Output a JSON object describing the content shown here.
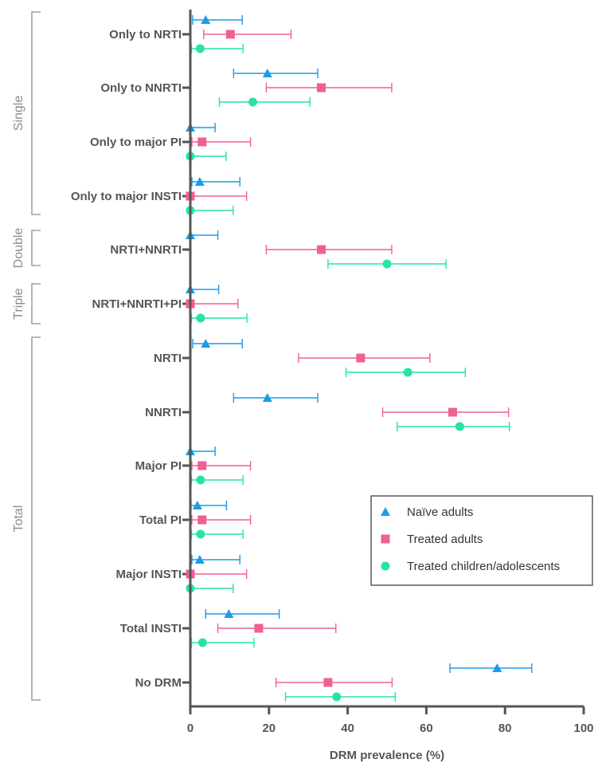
{
  "chart_data": {
    "type": "scatter",
    "subtype": "horizontal-forest-plot-with-error-bars",
    "xlabel": "DRM prevalence (%)",
    "xlim": [
      0,
      100
    ],
    "xticks": [
      0,
      20,
      40,
      60,
      80,
      100
    ],
    "categories": [
      "Only to NRTI",
      "Only to NNRTI",
      "Only to major PI",
      "Only to major INSTI",
      "NRTI+NNRTI",
      "NRTI+NNRTI+PI",
      "NRTI",
      "NNRTI",
      "Major PI",
      "Total PI",
      "Major INSTI",
      "Total INSTI",
      "No DRM"
    ],
    "groups": [
      {
        "label": "Single",
        "categories": [
          "Only to NRTI",
          "Only to NNRTI",
          "Only to major PI",
          "Only to major INSTI"
        ]
      },
      {
        "label": "Double",
        "categories": [
          "NRTI+NNRTI"
        ]
      },
      {
        "label": "Triple",
        "categories": [
          "NRTI+NNRTI+PI"
        ]
      },
      {
        "label": "Total",
        "categories": [
          "NRTI",
          "NNRTI",
          "Major PI",
          "Total PI",
          "Major INSTI",
          "Total INSTI",
          "No DRM"
        ]
      }
    ],
    "legend_position": "lower-right",
    "series": [
      {
        "name": "Naïve adults",
        "marker": "triangle",
        "color": "#1e9be6",
        "values": [
          3.9,
          19.6,
          0.0,
          2.4,
          0.0,
          0.0,
          3.9,
          19.6,
          0.0,
          1.8,
          2.4,
          9.8,
          78.0
        ],
        "ci_low": [
          0.6,
          11.0,
          0.0,
          0.4,
          0.0,
          0.0,
          0.6,
          11.0,
          0.0,
          0.2,
          0.4,
          3.9,
          66.0
        ],
        "ci_high": [
          13.2,
          32.4,
          6.3,
          12.6,
          7.0,
          7.2,
          13.2,
          32.4,
          6.3,
          9.2,
          12.6,
          22.6,
          86.8
        ]
      },
      {
        "name": "Treated adults",
        "marker": "square",
        "color": "#ef5f94",
        "values": [
          10.2,
          33.3,
          3.0,
          0.0,
          33.3,
          0.0,
          43.3,
          66.7,
          3.0,
          3.0,
          0.0,
          17.4,
          35.0
        ],
        "ci_low": [
          3.4,
          19.3,
          0.4,
          0.0,
          19.3,
          0.0,
          27.5,
          48.9,
          0.4,
          0.4,
          0.0,
          7.0,
          21.8
        ],
        "ci_high": [
          25.6,
          51.2,
          15.3,
          14.3,
          51.2,
          12.1,
          60.9,
          80.9,
          15.3,
          15.3,
          14.3,
          37.0,
          51.3
        ]
      },
      {
        "name": "Treated children/adolescents",
        "marker": "circle",
        "color": "#27e3a8",
        "values": [
          2.5,
          15.9,
          0.0,
          0.0,
          50.0,
          2.6,
          55.3,
          68.5,
          2.6,
          2.6,
          0.0,
          3.1,
          37.2
        ],
        "ci_low": [
          0.3,
          7.4,
          0.0,
          0.0,
          35.0,
          0.3,
          39.6,
          52.6,
          0.3,
          0.3,
          0.0,
          0.3,
          24.2
        ],
        "ci_high": [
          13.4,
          30.4,
          9.1,
          10.9,
          65.0,
          14.4,
          69.9,
          81.1,
          13.4,
          13.4,
          10.9,
          16.2,
          52.1
        ]
      }
    ]
  }
}
